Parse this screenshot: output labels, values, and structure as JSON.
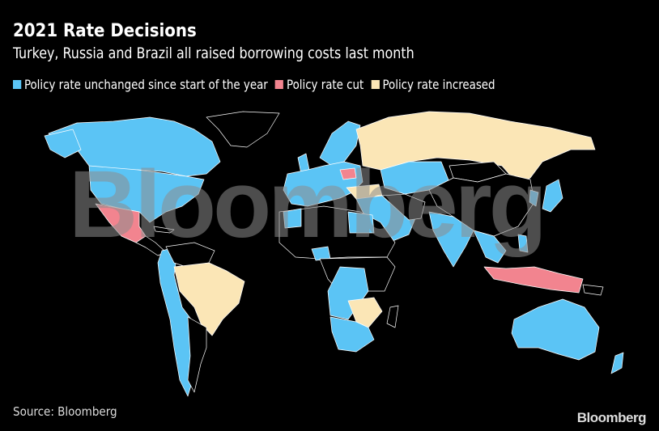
{
  "header": {
    "title": "2021 Rate Decisions",
    "subtitle": "Turkey, Russia and Brazil all raised borrowing costs last month"
  },
  "legend": [
    {
      "label": "Policy rate unchanged since start of the year",
      "color": "#5bc4f5"
    },
    {
      "label": "Policy rate cut",
      "color": "#f2848f"
    },
    {
      "label": "Policy rate increased",
      "color": "#fbe6b6"
    }
  ],
  "colors": {
    "no_data": "#000000",
    "border": "#ffffff",
    "background": "#000000"
  },
  "watermark": "Bloomberg",
  "footer": {
    "source": "Source: Bloomberg",
    "logo": "Bloomberg"
  }
}
